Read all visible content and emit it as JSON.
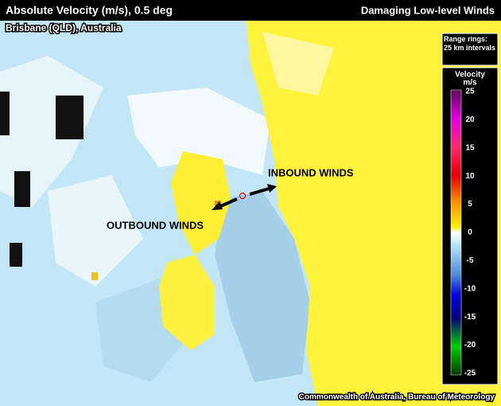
{
  "header": {
    "title": "Absolute Velocity (m/s), 0.5 deg",
    "topic": "Damaging Low-level Winds",
    "location": "Brisbane (QLD), Australia"
  },
  "range_note": "Range rings: 25 km intervals",
  "legend": {
    "title": "Velocity",
    "unit": "m/s",
    "ticks": [
      25,
      20,
      15,
      10,
      5,
      0,
      -5,
      -10,
      -15,
      -20,
      -25
    ]
  },
  "annotations": {
    "inbound": "INBOUND WINDS",
    "outbound": "OUTBOUND WINDS"
  },
  "credit": "Commonwealth of Australia, Bureau of Meteorology"
}
